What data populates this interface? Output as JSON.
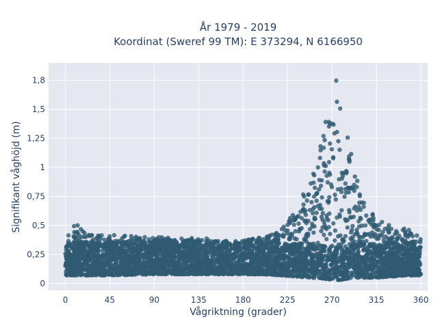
{
  "chart_data": {
    "type": "scatter",
    "title_line1": "År 1979 - 2019",
    "title_line2": "Koordinat (Sweref 99 TM): E 373294, N 6166950",
    "xlabel": "Vågriktning (grader)",
    "ylabel": "Signifikant våghöjd (m)",
    "xlim": [
      -17,
      367
    ],
    "ylim": [
      -0.06,
      1.9
    ],
    "x_ticks": [
      0,
      45,
      90,
      135,
      180,
      225,
      270,
      315,
      360
    ],
    "y_ticks": [
      0,
      0.25,
      0.5,
      0.75,
      1,
      1.25,
      1.5,
      1.75
    ],
    "y_tick_labels": [
      "0",
      "0,25",
      "0,5",
      "0,75",
      "1",
      "1,25",
      "1,5",
      "1,8"
    ],
    "grid": true,
    "marker_color": "#2f5a72",
    "background_color": "#e5e8f0",
    "envelope": {
      "direction": [
        0,
        10,
        20,
        45,
        90,
        135,
        160,
        180,
        200,
        220,
        235,
        250,
        260,
        265,
        270,
        275,
        280,
        285,
        290,
        300,
        315,
        330,
        345,
        360
      ],
      "upper_height": [
        0.42,
        0.52,
        0.44,
        0.42,
        0.4,
        0.4,
        0.36,
        0.37,
        0.4,
        0.48,
        0.65,
        0.95,
        1.25,
        1.45,
        1.55,
        1.8,
        1.55,
        1.3,
        1.1,
        0.75,
        0.55,
        0.5,
        0.48,
        0.42
      ],
      "lower_height": [
        0.07,
        0.07,
        0.07,
        0.07,
        0.08,
        0.08,
        0.08,
        0.08,
        0.08,
        0.07,
        0.06,
        0.05,
        0.04,
        0.04,
        0.03,
        0.03,
        0.03,
        0.04,
        0.05,
        0.05,
        0.05,
        0.06,
        0.07,
        0.07
      ]
    }
  }
}
